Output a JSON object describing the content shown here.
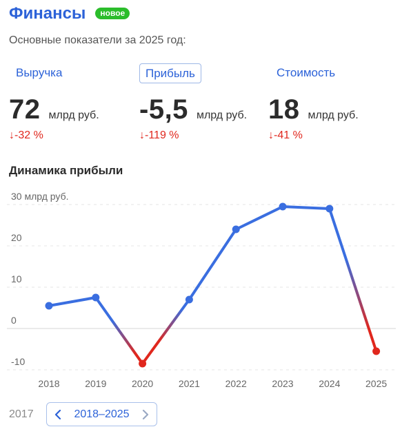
{
  "header": {
    "title": "Финансы",
    "badge": "новое",
    "subtitle": "Основные показатели за 2025 год:"
  },
  "metrics": [
    {
      "label": "Выручка",
      "value": "72",
      "unit": "млрд руб.",
      "change": "-32 %",
      "selected": false
    },
    {
      "label": "Прибыль",
      "value": "-5,5",
      "unit": "млрд руб.",
      "change": "-119 %",
      "selected": true
    },
    {
      "label": "Стоимость",
      "value": "18",
      "unit": "млрд руб.",
      "change": "-41 %",
      "selected": false
    }
  ],
  "section_title": "Динамика прибыли",
  "range_nav": {
    "prev_year": "2017",
    "range_label": "2018–2025"
  },
  "colors": {
    "accent": "#2c62d8",
    "positive_line": "#3a6ee0",
    "negative": "#e0271d",
    "badge": "#2bbd2b"
  },
  "chart_data": {
    "type": "line",
    "title": "Динамика прибыли",
    "x": [
      "2018",
      "2019",
      "2020",
      "2021",
      "2022",
      "2023",
      "2024",
      "2025"
    ],
    "series": [
      {
        "values": [
          5.5,
          7.5,
          -8.5,
          7,
          24,
          29.5,
          29,
          -5.5
        ]
      }
    ],
    "ylim": [
      -10,
      30
    ],
    "yticks": [
      -10,
      0,
      10,
      20,
      30
    ],
    "ytick_labels": [
      "-10",
      "0",
      "10",
      "20",
      "30 млрд руб."
    ],
    "grid": true
  }
}
